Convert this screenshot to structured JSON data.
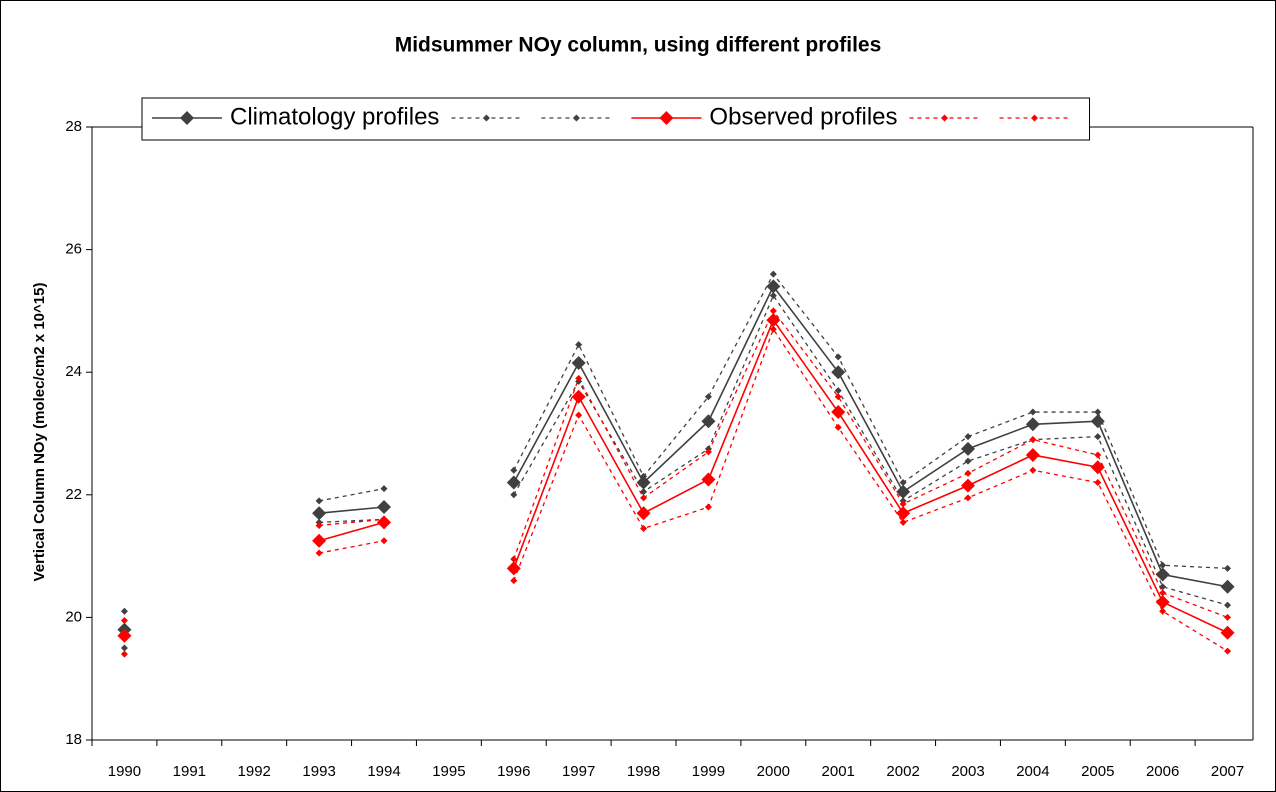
{
  "chart_data": {
    "type": "line",
    "title": "Midsummer NOy column, using different profiles",
    "y_label": "Vertical Column NOy (molec/cm2 x 10^15)",
    "categories": [
      "1990",
      "1991",
      "1992",
      "1993",
      "1994",
      "1995",
      "1996",
      "1997",
      "1998",
      "1999",
      "2000",
      "2001",
      "2002",
      "2003",
      "2004",
      "2005",
      "2006",
      "2007"
    ],
    "ylim": [
      18,
      28
    ],
    "yticks": [
      18,
      20,
      22,
      24,
      26,
      28
    ],
    "grid": false,
    "legend": "top",
    "series": [
      {
        "name": "Climatology profiles",
        "color": "#404040",
        "dash": false,
        "values": [
          19.8,
          null,
          null,
          21.7,
          21.8,
          null,
          22.2,
          24.15,
          22.2,
          23.2,
          25.4,
          24.0,
          22.05,
          22.75,
          23.15,
          23.2,
          20.7,
          20.5
        ]
      },
      {
        "color": "#404040",
        "dash": true,
        "values": [
          20.1,
          null,
          null,
          21.9,
          22.1,
          null,
          22.4,
          24.45,
          22.3,
          23.6,
          25.6,
          24.25,
          22.2,
          22.95,
          23.35,
          23.35,
          20.85,
          20.8
        ]
      },
      {
        "color": "#404040",
        "dash": true,
        "values": [
          19.5,
          null,
          null,
          21.55,
          21.6,
          null,
          22.0,
          23.85,
          22.05,
          22.75,
          25.25,
          23.7,
          21.9,
          22.55,
          22.9,
          22.95,
          20.5,
          20.2
        ]
      },
      {
        "name": "Observed profiles",
        "color": "#ff0000",
        "dash": false,
        "values": [
          19.7,
          null,
          null,
          21.25,
          21.55,
          null,
          20.8,
          23.6,
          21.7,
          22.25,
          24.85,
          23.35,
          21.7,
          22.15,
          22.65,
          22.45,
          20.25,
          19.75
        ]
      },
      {
        "color": "#ff0000",
        "dash": true,
        "values": [
          19.95,
          null,
          null,
          21.5,
          21.6,
          null,
          20.95,
          23.9,
          21.95,
          22.7,
          25.0,
          23.6,
          21.85,
          22.35,
          22.9,
          22.65,
          20.4,
          20.0
        ]
      },
      {
        "color": "#ff0000",
        "dash": true,
        "values": [
          19.4,
          null,
          null,
          21.05,
          21.25,
          null,
          20.6,
          23.3,
          21.45,
          21.8,
          24.7,
          23.1,
          21.55,
          21.95,
          22.4,
          22.2,
          20.1,
          19.45
        ]
      }
    ]
  }
}
